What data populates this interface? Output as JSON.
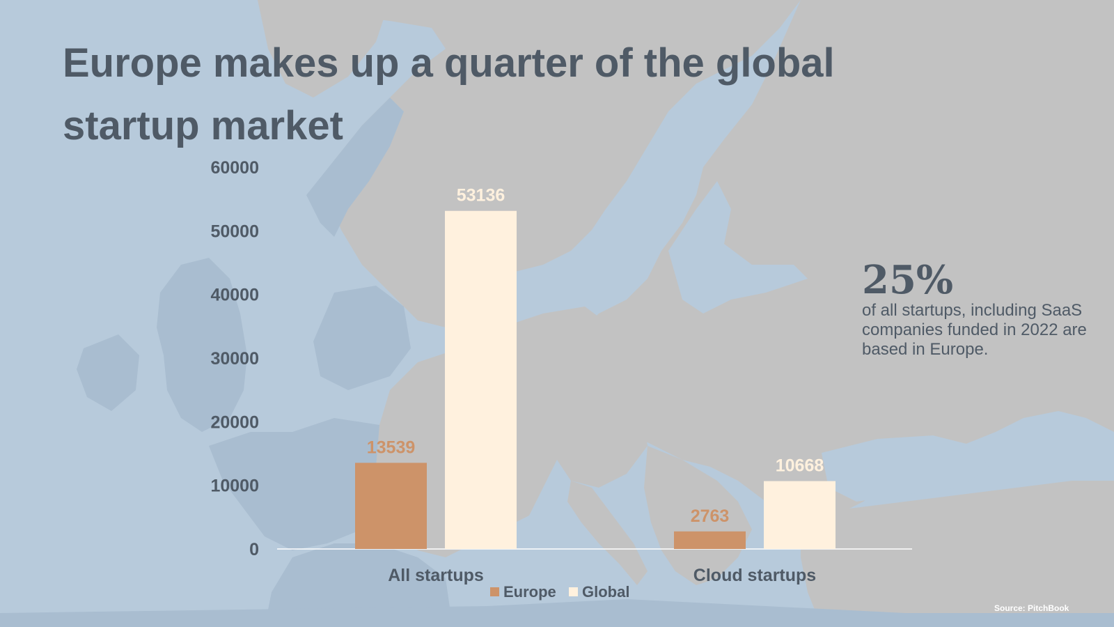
{
  "title": "Europe makes up a quarter of the global startup market",
  "chart_data": {
    "type": "bar",
    "categories": [
      "All startups",
      "Cloud startups"
    ],
    "series": [
      {
        "name": "Europe",
        "color": "#cd9369",
        "label_color": "#cd9369",
        "values": [
          13539,
          2763
        ]
      },
      {
        "name": "Global",
        "color": "#fff1de",
        "label_color": "#fff1de",
        "values": [
          53136,
          10668
        ]
      }
    ],
    "ylim": [
      0,
      60000
    ],
    "yticks": [
      0,
      10000,
      20000,
      30000,
      40000,
      50000,
      60000
    ],
    "legend_position": "bottom",
    "grid": false
  },
  "callout": {
    "big": "25%",
    "text": "of all startups, including SaaS companies funded in 2022 are based in Europe."
  },
  "source": "Source: PitchBook",
  "colors": {
    "background_sea": "#b7cadb",
    "land": "#c2c2c2",
    "text": "#4f5a66"
  }
}
